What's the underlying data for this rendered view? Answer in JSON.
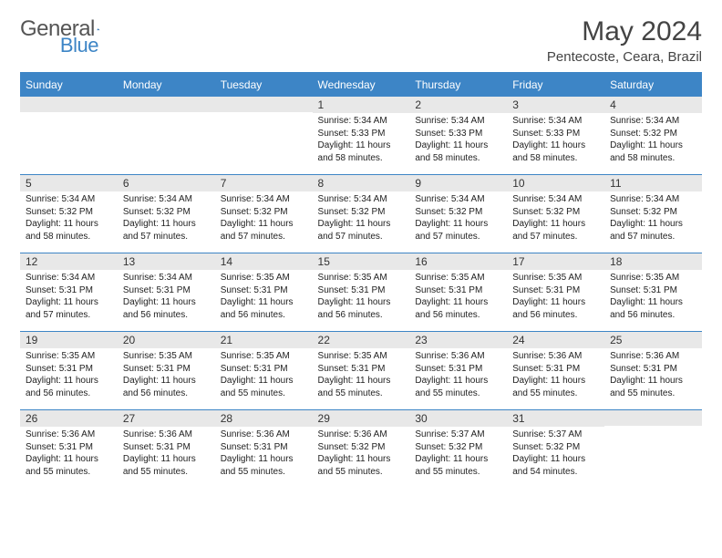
{
  "logo": {
    "text1": "General",
    "text2": "Blue"
  },
  "title": "May 2024",
  "location": "Pentecoste, Ceara, Brazil",
  "colors": {
    "header_bg": "#3d85c6",
    "daynum_bg": "#e8e8e8",
    "text": "#222222"
  },
  "day_names": [
    "Sunday",
    "Monday",
    "Tuesday",
    "Wednesday",
    "Thursday",
    "Friday",
    "Saturday"
  ],
  "weeks": [
    [
      {
        "n": "",
        "rise": "",
        "set": "",
        "day": ""
      },
      {
        "n": "",
        "rise": "",
        "set": "",
        "day": ""
      },
      {
        "n": "",
        "rise": "",
        "set": "",
        "day": ""
      },
      {
        "n": "1",
        "rise": "5:34 AM",
        "set": "5:33 PM",
        "day": "11 hours and 58 minutes."
      },
      {
        "n": "2",
        "rise": "5:34 AM",
        "set": "5:33 PM",
        "day": "11 hours and 58 minutes."
      },
      {
        "n": "3",
        "rise": "5:34 AM",
        "set": "5:33 PM",
        "day": "11 hours and 58 minutes."
      },
      {
        "n": "4",
        "rise": "5:34 AM",
        "set": "5:32 PM",
        "day": "11 hours and 58 minutes."
      }
    ],
    [
      {
        "n": "5",
        "rise": "5:34 AM",
        "set": "5:32 PM",
        "day": "11 hours and 58 minutes."
      },
      {
        "n": "6",
        "rise": "5:34 AM",
        "set": "5:32 PM",
        "day": "11 hours and 57 minutes."
      },
      {
        "n": "7",
        "rise": "5:34 AM",
        "set": "5:32 PM",
        "day": "11 hours and 57 minutes."
      },
      {
        "n": "8",
        "rise": "5:34 AM",
        "set": "5:32 PM",
        "day": "11 hours and 57 minutes."
      },
      {
        "n": "9",
        "rise": "5:34 AM",
        "set": "5:32 PM",
        "day": "11 hours and 57 minutes."
      },
      {
        "n": "10",
        "rise": "5:34 AM",
        "set": "5:32 PM",
        "day": "11 hours and 57 minutes."
      },
      {
        "n": "11",
        "rise": "5:34 AM",
        "set": "5:32 PM",
        "day": "11 hours and 57 minutes."
      }
    ],
    [
      {
        "n": "12",
        "rise": "5:34 AM",
        "set": "5:31 PM",
        "day": "11 hours and 57 minutes."
      },
      {
        "n": "13",
        "rise": "5:34 AM",
        "set": "5:31 PM",
        "day": "11 hours and 56 minutes."
      },
      {
        "n": "14",
        "rise": "5:35 AM",
        "set": "5:31 PM",
        "day": "11 hours and 56 minutes."
      },
      {
        "n": "15",
        "rise": "5:35 AM",
        "set": "5:31 PM",
        "day": "11 hours and 56 minutes."
      },
      {
        "n": "16",
        "rise": "5:35 AM",
        "set": "5:31 PM",
        "day": "11 hours and 56 minutes."
      },
      {
        "n": "17",
        "rise": "5:35 AM",
        "set": "5:31 PM",
        "day": "11 hours and 56 minutes."
      },
      {
        "n": "18",
        "rise": "5:35 AM",
        "set": "5:31 PM",
        "day": "11 hours and 56 minutes."
      }
    ],
    [
      {
        "n": "19",
        "rise": "5:35 AM",
        "set": "5:31 PM",
        "day": "11 hours and 56 minutes."
      },
      {
        "n": "20",
        "rise": "5:35 AM",
        "set": "5:31 PM",
        "day": "11 hours and 56 minutes."
      },
      {
        "n": "21",
        "rise": "5:35 AM",
        "set": "5:31 PM",
        "day": "11 hours and 55 minutes."
      },
      {
        "n": "22",
        "rise": "5:35 AM",
        "set": "5:31 PM",
        "day": "11 hours and 55 minutes."
      },
      {
        "n": "23",
        "rise": "5:36 AM",
        "set": "5:31 PM",
        "day": "11 hours and 55 minutes."
      },
      {
        "n": "24",
        "rise": "5:36 AM",
        "set": "5:31 PM",
        "day": "11 hours and 55 minutes."
      },
      {
        "n": "25",
        "rise": "5:36 AM",
        "set": "5:31 PM",
        "day": "11 hours and 55 minutes."
      }
    ],
    [
      {
        "n": "26",
        "rise": "5:36 AM",
        "set": "5:31 PM",
        "day": "11 hours and 55 minutes."
      },
      {
        "n": "27",
        "rise": "5:36 AM",
        "set": "5:31 PM",
        "day": "11 hours and 55 minutes."
      },
      {
        "n": "28",
        "rise": "5:36 AM",
        "set": "5:31 PM",
        "day": "11 hours and 55 minutes."
      },
      {
        "n": "29",
        "rise": "5:36 AM",
        "set": "5:32 PM",
        "day": "11 hours and 55 minutes."
      },
      {
        "n": "30",
        "rise": "5:37 AM",
        "set": "5:32 PM",
        "day": "11 hours and 55 minutes."
      },
      {
        "n": "31",
        "rise": "5:37 AM",
        "set": "5:32 PM",
        "day": "11 hours and 54 minutes."
      },
      {
        "n": "",
        "rise": "",
        "set": "",
        "day": ""
      }
    ]
  ],
  "labels": {
    "sunrise": "Sunrise: ",
    "sunset": "Sunset: ",
    "daylight": "Daylight: "
  }
}
